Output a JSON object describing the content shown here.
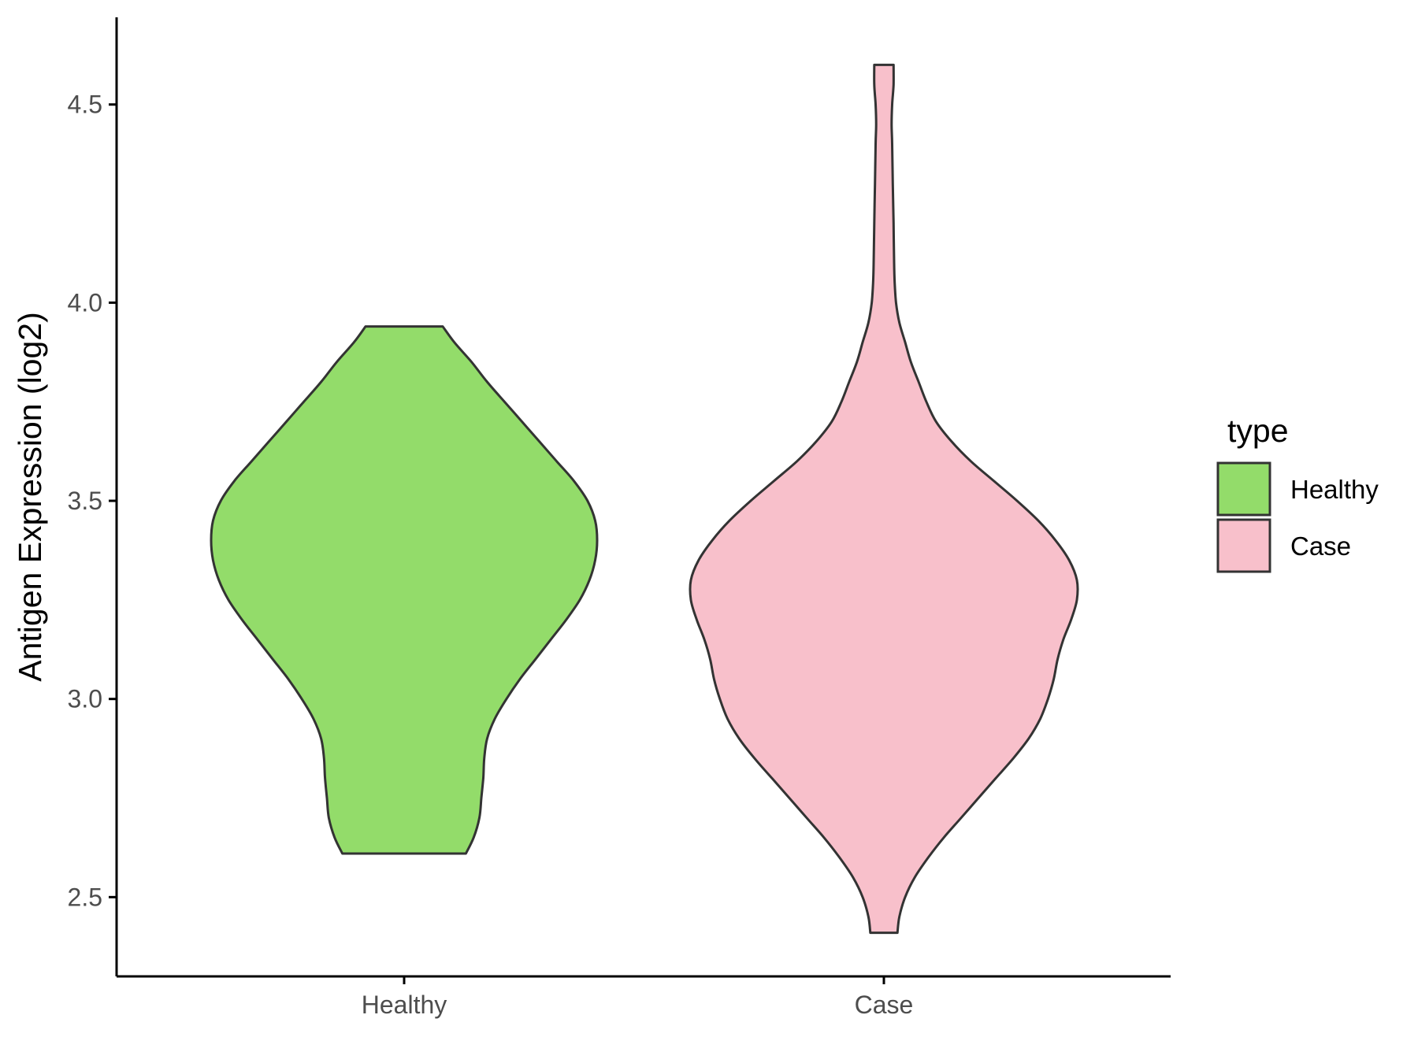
{
  "chart_data": {
    "type": "violin",
    "title": "",
    "xlabel": "",
    "ylabel": "Antigen Expression (log2)",
    "ylim": [
      2.3,
      4.72
    ],
    "yticks": [
      2.5,
      3.0,
      3.5,
      4.0,
      4.5
    ],
    "ytick_labels": [
      "2.5",
      "3.0",
      "3.5",
      "4.0",
      "4.5"
    ],
    "categories": [
      "Healthy",
      "Case"
    ],
    "grid": false,
    "legend": {
      "title": "type",
      "position": "right",
      "entries": [
        {
          "label": "Healthy",
          "color": "#93DC6A"
        },
        {
          "label": "Case",
          "color": "#F8C0CB"
        }
      ]
    },
    "series": [
      {
        "category": "Healthy",
        "color": "#93DC6A",
        "range": [
          2.61,
          3.94
        ],
        "profile": [
          [
            2.61,
            0.32
          ],
          [
            2.65,
            0.36
          ],
          [
            2.7,
            0.39
          ],
          [
            2.75,
            0.4
          ],
          [
            2.8,
            0.41
          ],
          [
            2.85,
            0.415
          ],
          [
            2.9,
            0.43
          ],
          [
            2.95,
            0.47
          ],
          [
            3.0,
            0.53
          ],
          [
            3.05,
            0.6
          ],
          [
            3.1,
            0.68
          ],
          [
            3.15,
            0.76
          ],
          [
            3.2,
            0.84
          ],
          [
            3.25,
            0.91
          ],
          [
            3.3,
            0.96
          ],
          [
            3.35,
            0.99
          ],
          [
            3.4,
            1.0
          ],
          [
            3.45,
            0.99
          ],
          [
            3.5,
            0.95
          ],
          [
            3.55,
            0.88
          ],
          [
            3.6,
            0.79
          ],
          [
            3.65,
            0.7
          ],
          [
            3.7,
            0.61
          ],
          [
            3.75,
            0.52
          ],
          [
            3.8,
            0.43
          ],
          [
            3.85,
            0.35
          ],
          [
            3.9,
            0.26
          ],
          [
            3.94,
            0.2
          ]
        ]
      },
      {
        "category": "Case",
        "color": "#F8C0CB",
        "range": [
          2.41,
          4.6
        ],
        "profile": [
          [
            2.41,
            0.07
          ],
          [
            2.45,
            0.08
          ],
          [
            2.5,
            0.11
          ],
          [
            2.55,
            0.16
          ],
          [
            2.6,
            0.23
          ],
          [
            2.65,
            0.31
          ],
          [
            2.7,
            0.4
          ],
          [
            2.75,
            0.49
          ],
          [
            2.8,
            0.58
          ],
          [
            2.85,
            0.67
          ],
          [
            2.9,
            0.75
          ],
          [
            2.95,
            0.81
          ],
          [
            3.0,
            0.85
          ],
          [
            3.05,
            0.88
          ],
          [
            3.1,
            0.9
          ],
          [
            3.15,
            0.93
          ],
          [
            3.2,
            0.97
          ],
          [
            3.25,
            1.0
          ],
          [
            3.3,
            1.0
          ],
          [
            3.35,
            0.96
          ],
          [
            3.4,
            0.89
          ],
          [
            3.45,
            0.8
          ],
          [
            3.5,
            0.69
          ],
          [
            3.55,
            0.57
          ],
          [
            3.6,
            0.45
          ],
          [
            3.65,
            0.35
          ],
          [
            3.7,
            0.27
          ],
          [
            3.75,
            0.22
          ],
          [
            3.8,
            0.18
          ],
          [
            3.85,
            0.14
          ],
          [
            3.9,
            0.11
          ],
          [
            3.95,
            0.08
          ],
          [
            4.0,
            0.063
          ],
          [
            4.05,
            0.056
          ],
          [
            4.1,
            0.053
          ],
          [
            4.2,
            0.05
          ],
          [
            4.3,
            0.046
          ],
          [
            4.4,
            0.043
          ],
          [
            4.45,
            0.04
          ],
          [
            4.5,
            0.043
          ],
          [
            4.55,
            0.05
          ],
          [
            4.6,
            0.05
          ]
        ]
      }
    ]
  }
}
